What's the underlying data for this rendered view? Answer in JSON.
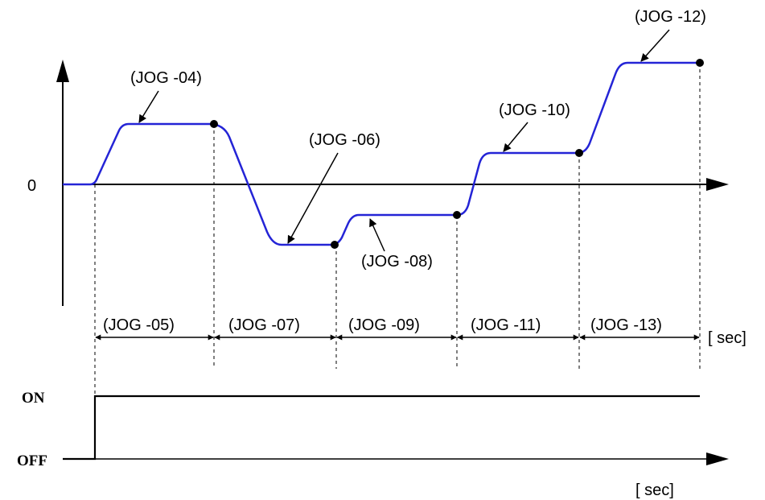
{
  "velocity_axis": {
    "zero_label": "0"
  },
  "profile_labels": {
    "jog04": "(JOG -04)",
    "jog06": "(JOG -06)",
    "jog08": "(JOG -08)",
    "jog10": "(JOG -10)",
    "jog12": "(JOG -12)"
  },
  "interval_labels": {
    "jog05": "(JOG -05)",
    "jog07": "(JOG -07)",
    "jog09": "(JOG -09)",
    "jog11": "(JOG -11)",
    "jog13": "(JOG -13)"
  },
  "time_unit_upper": "[ sec]",
  "signal": {
    "on_label": "ON",
    "off_label": "OFF",
    "time_unit": "[ sec]"
  },
  "colors": {
    "profile": "#2424d6",
    "axis": "#000000"
  }
}
